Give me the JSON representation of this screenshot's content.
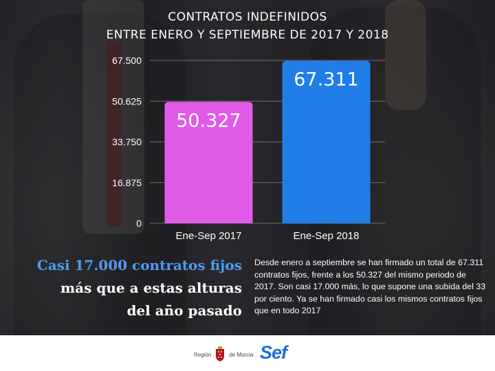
{
  "header": {
    "title_line1": "CONTRATOS INDEFINIDOS",
    "title_line2": "ENTRE ENERO Y SEPTIEMBRE DE 2017 Y 2018"
  },
  "chart_data": {
    "type": "bar",
    "categories": [
      "Ene-Sep 2017",
      "Ene-Sep 2018"
    ],
    "values": [
      50327,
      67311
    ],
    "value_labels": [
      "50.327",
      "67.311"
    ],
    "ylim": [
      0,
      67500
    ],
    "yticks": [
      0,
      16875,
      33750,
      50625,
      67500
    ],
    "ytick_labels": [
      "0",
      "16.875",
      "33.750",
      "50.625",
      "67.500"
    ],
    "colors": [
      "#e05be8",
      "#1f7ee8"
    ],
    "grid": true,
    "title": "",
    "xlabel": "",
    "ylabel": ""
  },
  "headline": {
    "line1": "Casi 17.000 contratos fijos",
    "line2": "más que a estas alturas",
    "line3": "del año pasado"
  },
  "body": {
    "text": "Desde enero a septiembre se han firmado un total de 67.311 contratos fijos, frente a los 50.327 del mismo periodo de 2017. Son casi 17.000 más, lo que supone una subida del 33 por ciento. Ya se han firmado casi los mismos contratos fijos que en todo 2017"
  },
  "footer": {
    "region_left": "Región",
    "region_right": "de Murcia",
    "sef_logo": "Sef",
    "crest_icon": "region-crest-icon"
  },
  "colors": {
    "headline_accent": "#4d9cf2",
    "sef_blue": "#1a6fd8"
  }
}
